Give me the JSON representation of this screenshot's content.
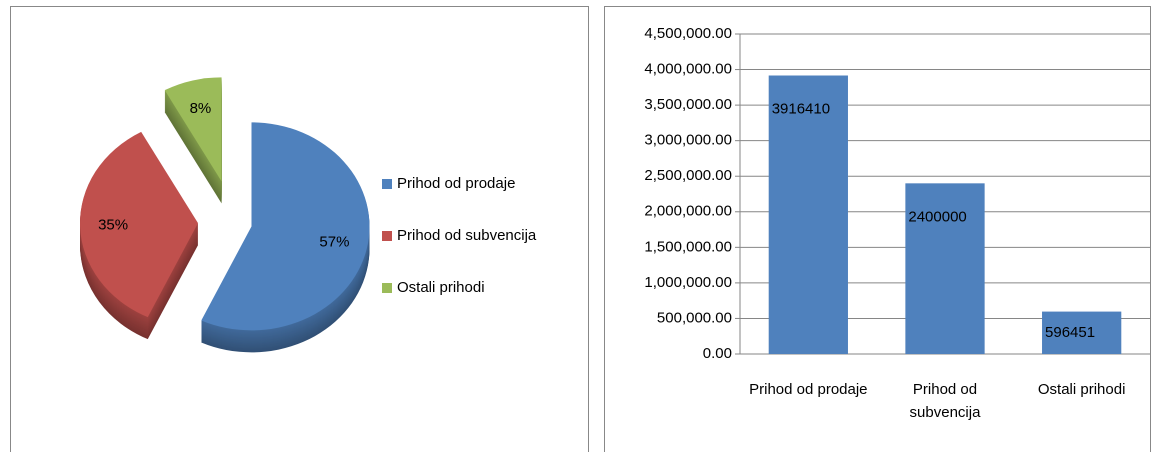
{
  "chart_data": [
    {
      "type": "pie",
      "categories": [
        "Prihod od prodaje",
        "Prihod od subvencija",
        "Ostali prihodi"
      ],
      "values": [
        57,
        35,
        8
      ],
      "value_labels": [
        "57%",
        "35%",
        "8%"
      ],
      "colors": [
        "#4f81bd",
        "#c0504d",
        "#9bbb59"
      ],
      "legend": "right"
    },
    {
      "type": "bar",
      "categories": [
        "Prihod od prodaje",
        "Prihod od subvencija",
        "Ostali prihodi"
      ],
      "values": [
        3916410,
        2400000,
        596451
      ],
      "color": "#4f81bd",
      "ylim": [
        0,
        4500000
      ],
      "yticks": [
        {
          "value": 0,
          "label": "0.00"
        },
        {
          "value": 500000,
          "label": "500,000.00"
        },
        {
          "value": 1000000,
          "label": "1,000,000.00"
        },
        {
          "value": 1500000,
          "label": "1,500,000.00"
        },
        {
          "value": 2000000,
          "label": "2,000,000.00"
        },
        {
          "value": 2500000,
          "label": "2,500,000.00"
        },
        {
          "value": 3000000,
          "label": "3,000,000.00"
        },
        {
          "value": 3500000,
          "label": "3,500,000.00"
        },
        {
          "value": 4000000,
          "label": "4,000,000.00"
        },
        {
          "value": 4500000,
          "label": "4,500,000.00"
        }
      ],
      "grid": true
    }
  ]
}
